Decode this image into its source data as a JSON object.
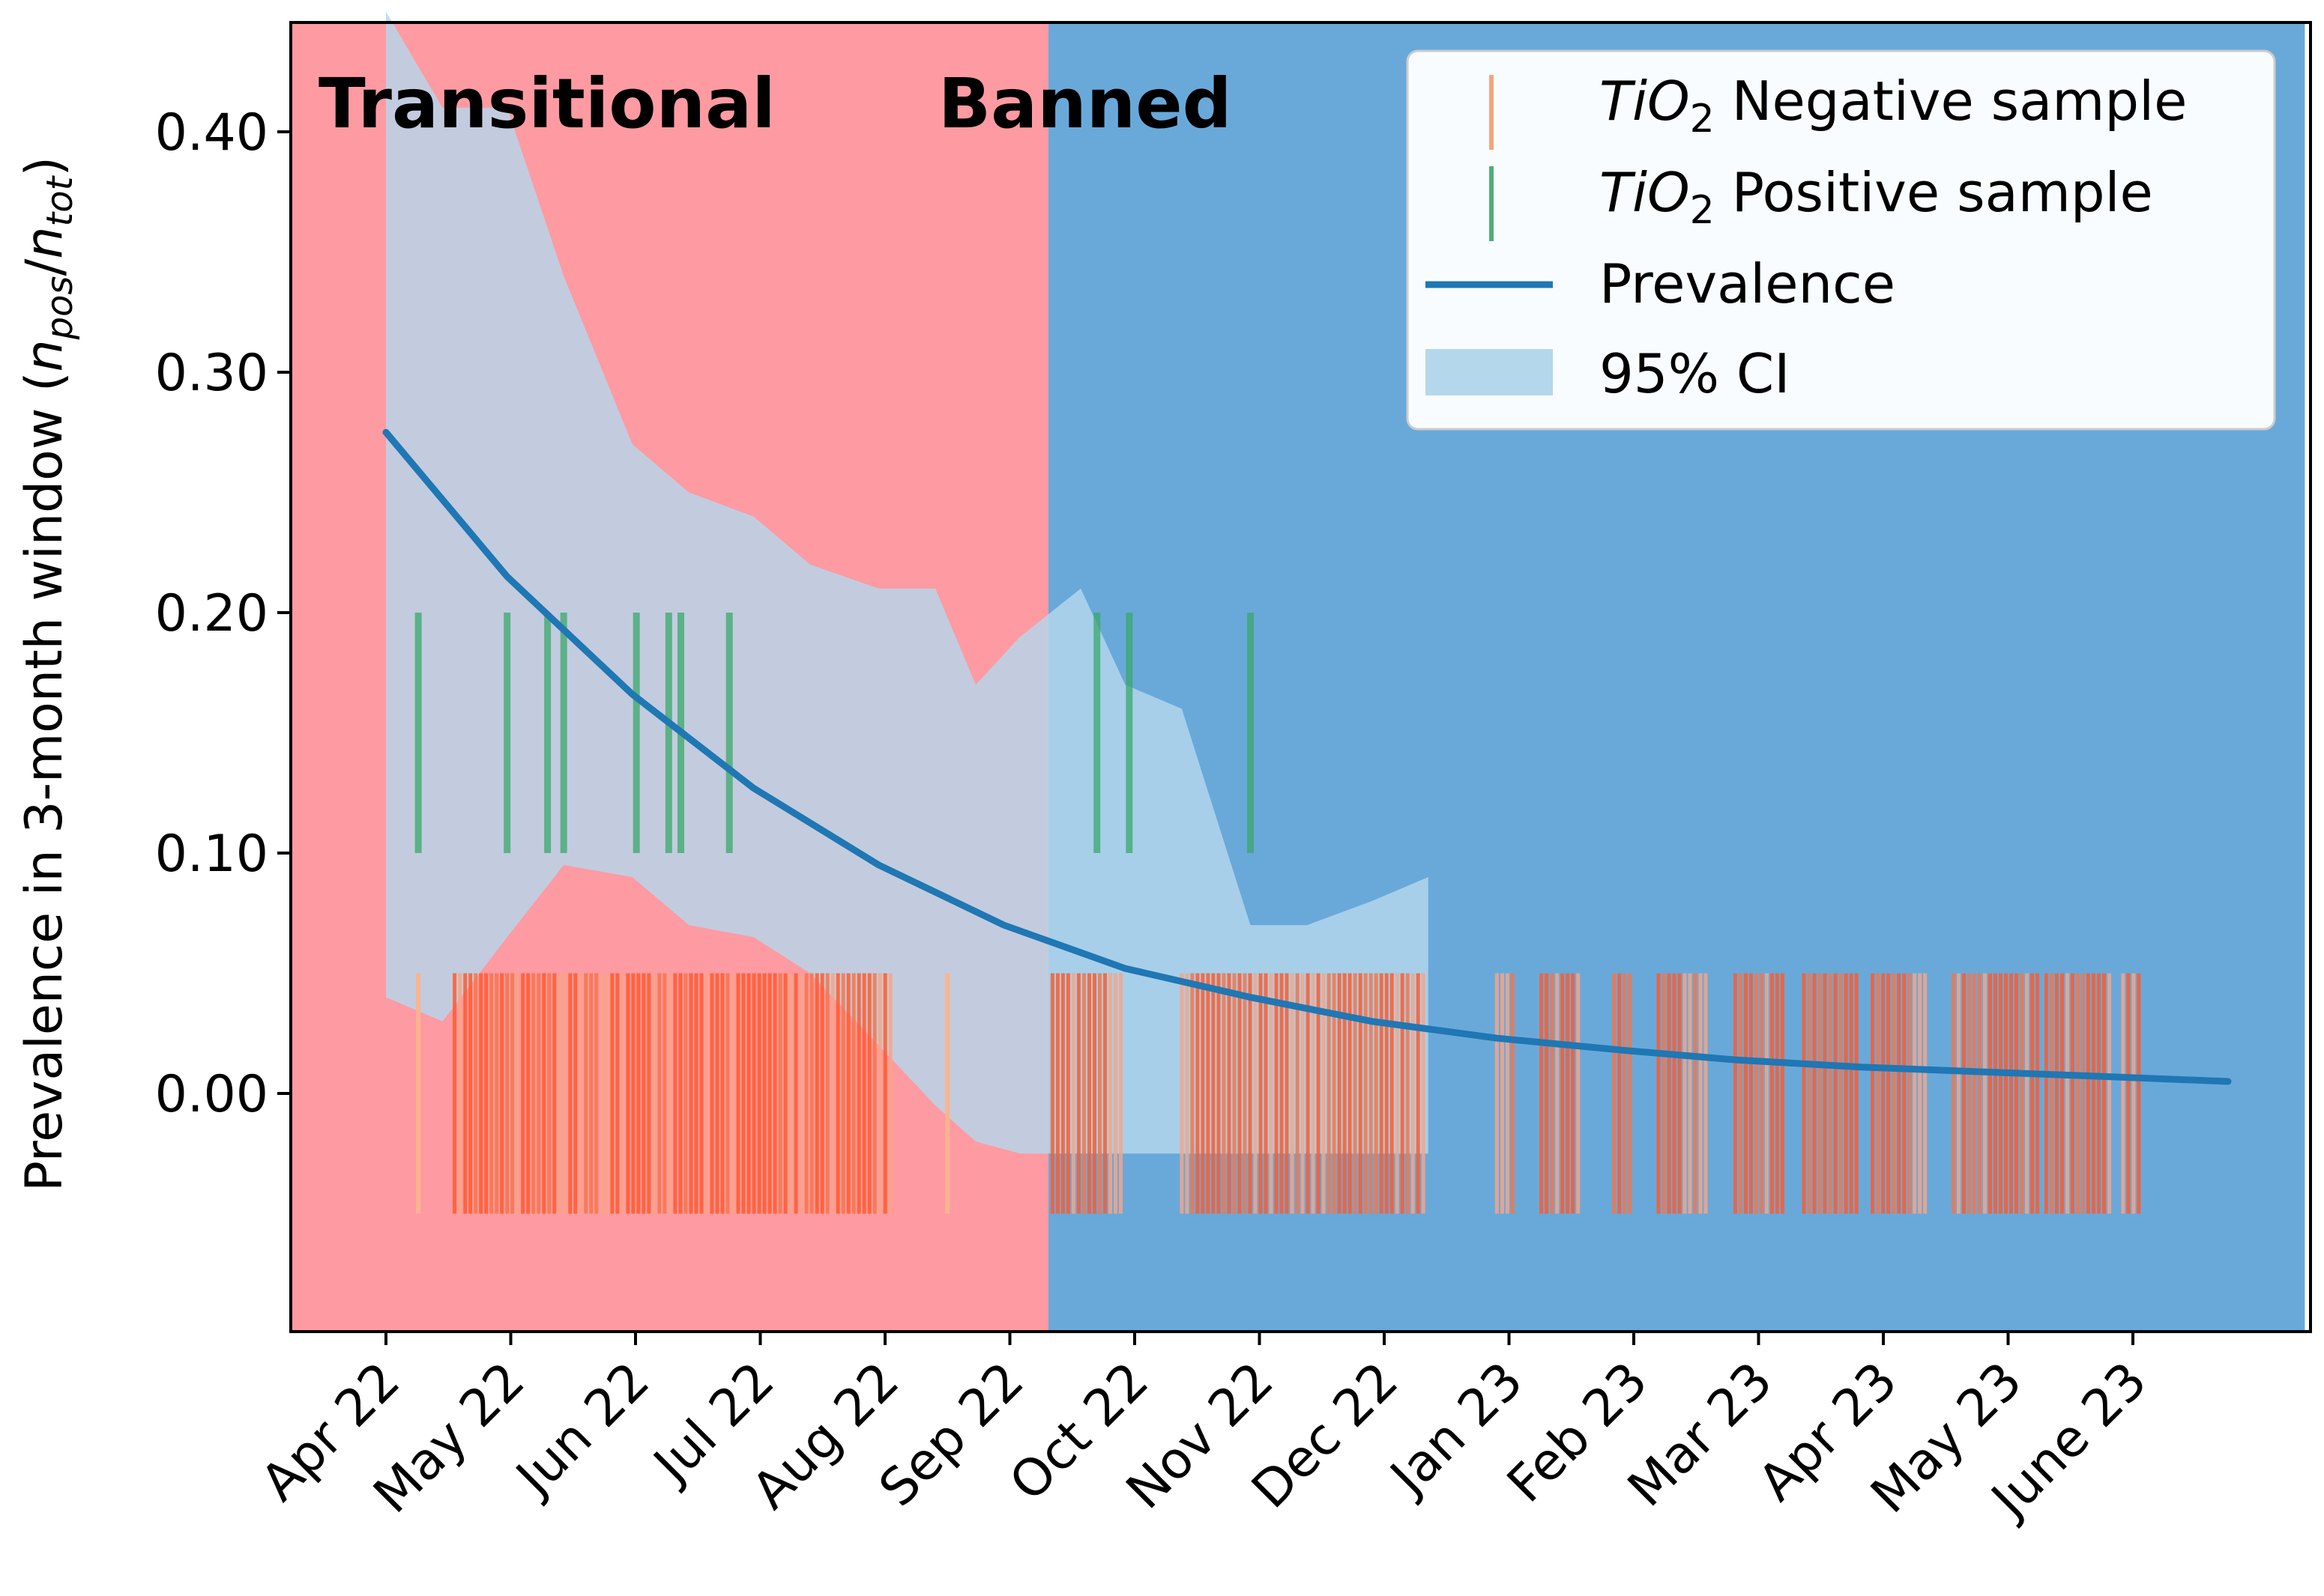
{
  "chart_data": {
    "type": "line",
    "ylabel": "Prevalence in 3-month window (n_pos/n_tot)",
    "ylabel_parts": {
      "main": "Prevalence in 3-month window (",
      "n1": "n",
      "sub1": "pos",
      "slash": "/",
      "n2": "n",
      "sub2": "tot",
      "close": ")"
    },
    "xlabel": "",
    "ylim": [
      -0.1,
      0.45
    ],
    "yticks": [
      0.0,
      0.1,
      0.2,
      0.3,
      0.4
    ],
    "ytick_labels": [
      "0.00",
      "0.10",
      "0.20",
      "0.30",
      "0.40"
    ],
    "xticks": [
      "Apr 22",
      "May 22",
      "Jun 22",
      "Jul 22",
      "Aug 22",
      "Sep 22",
      "Oct 22",
      "Nov 22",
      "Dec 22",
      "Jan 23",
      "Feb 23",
      "Mar 23",
      "Apr 23",
      "May 23",
      "June 23"
    ],
    "x_start": "2022-04-01",
    "x_end": "2023-07-01",
    "grid": false,
    "regions": [
      {
        "name": "Transitional",
        "start": "2022-03-01",
        "end": "2022-09-12",
        "color": "#fe9aa2"
      },
      {
        "name": "Banned",
        "start": "2022-09-12",
        "end": "2023-07-20",
        "color": "#69a9da"
      }
    ],
    "series": [
      {
        "name": "Prevalence",
        "color": "#1f77b4",
        "x": [
          "2022-04-01",
          "2022-05-01",
          "2022-06-01",
          "2022-07-01",
          "2022-08-01",
          "2022-09-01",
          "2022-10-01",
          "2022-11-01",
          "2022-12-01",
          "2023-01-01",
          "2023-02-01",
          "2023-03-01",
          "2023-04-01",
          "2023-05-01",
          "2023-06-01",
          "2023-07-01"
        ],
        "y": [
          0.275,
          0.215,
          0.166,
          0.127,
          0.095,
          0.07,
          0.052,
          0.04,
          0.03,
          0.023,
          0.018,
          0.014,
          0.011,
          0.009,
          0.007,
          0.005
        ]
      }
    ],
    "ci_band": {
      "name": "95% CI",
      "color": "#b5d7ec",
      "x": [
        "2022-04-01",
        "2022-04-15",
        "2022-05-01",
        "2022-05-15",
        "2022-06-01",
        "2022-06-15",
        "2022-07-01",
        "2022-07-15",
        "2022-08-01",
        "2022-08-15",
        "2022-08-25",
        "2022-09-05",
        "2022-09-20",
        "2022-10-01",
        "2022-10-15",
        "2022-11-01",
        "2022-11-15",
        "2022-12-01",
        "2022-12-15"
      ],
      "upper": [
        0.45,
        0.41,
        0.41,
        0.34,
        0.27,
        0.25,
        0.24,
        0.22,
        0.21,
        0.21,
        0.17,
        0.19,
        0.21,
        0.17,
        0.16,
        0.07,
        0.07,
        0.08,
        0.09
      ],
      "lower": [
        0.04,
        0.03,
        0.065,
        0.095,
        0.09,
        0.07,
        0.065,
        0.05,
        0.02,
        -0.005,
        -0.02,
        -0.025,
        -0.025,
        -0.025,
        -0.025,
        -0.025,
        -0.025,
        -0.025,
        -0.025
      ]
    },
    "samples": {
      "negative_color": "#ff5a2b",
      "positive_color": "#3aa86a",
      "positive_band": [
        0.1,
        0.2
      ],
      "negative_band": [
        -0.05,
        0.05
      ],
      "positive_dates": [
        "2022-04-09",
        "2022-05-01",
        "2022-05-11",
        "2022-05-15",
        "2022-06-02",
        "2022-06-10",
        "2022-06-13",
        "2022-06-25",
        "2022-09-24",
        "2022-10-02",
        "2022-11-01"
      ],
      "negative_ranges": [
        [
          "2022-04-18",
          "2022-08-04"
        ],
        [
          "2022-09-13",
          "2022-10-01"
        ],
        [
          "2022-10-15",
          "2022-12-15"
        ],
        [
          "2023-01-01",
          "2023-01-06"
        ],
        [
          "2023-01-12",
          "2023-01-22"
        ],
        [
          "2023-01-30",
          "2023-02-04"
        ],
        [
          "2023-02-10",
          "2023-02-22"
        ],
        [
          "2023-03-01",
          "2023-03-13"
        ],
        [
          "2023-03-18",
          "2023-04-01"
        ],
        [
          "2023-04-04",
          "2023-04-17"
        ],
        [
          "2023-04-24",
          "2023-05-15"
        ],
        [
          "2023-05-17",
          "2023-06-02"
        ],
        [
          "2023-06-05",
          "2023-06-10"
        ]
      ]
    }
  },
  "legend": {
    "items": [
      {
        "id": "neg",
        "label_var": "TiO",
        "label_sub": "2",
        "label_rest": " Negative sample",
        "color": "#f4a582"
      },
      {
        "id": "pos",
        "label_var": "TiO",
        "label_sub": "2",
        "label_rest": " Positive sample",
        "color": "#4daf7a"
      },
      {
        "id": "prev",
        "label": "Prevalence",
        "color": "#1f77b4"
      },
      {
        "id": "ci",
        "label": "95% CI",
        "color": "#b5d7ec"
      }
    ]
  },
  "region_labels": {
    "transitional": "Transitional",
    "banned": "Banned"
  }
}
